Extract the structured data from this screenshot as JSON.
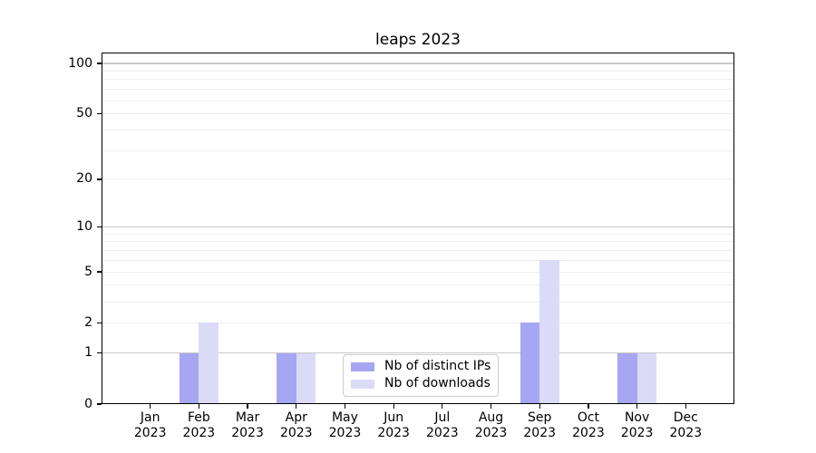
{
  "title": "leaps 2023",
  "chart_data": {
    "type": "bar",
    "title": "leaps 2023",
    "categories": [
      "Jan",
      "Feb",
      "Mar",
      "Apr",
      "May",
      "Jun",
      "Jul",
      "Aug",
      "Sep",
      "Oct",
      "Nov",
      "Dec"
    ],
    "year": "2023",
    "series": [
      {
        "name": "Nb of distinct IPs",
        "color": "#a6a6f2",
        "values": [
          0,
          1,
          0,
          1,
          0,
          0,
          0,
          0,
          2,
          0,
          1,
          0
        ]
      },
      {
        "name": "Nb of downloads",
        "color": "#dbdbf8",
        "values": [
          0,
          2,
          0,
          1,
          0,
          0,
          0,
          0,
          6,
          0,
          1,
          0
        ]
      }
    ],
    "xlabel": "",
    "ylabel": "",
    "yscale": "log1p",
    "ylim": [
      0,
      116
    ],
    "y_tick_values": [
      0,
      1,
      2,
      5,
      10,
      20,
      50,
      100
    ],
    "y_tick_labels": [
      "0",
      "1",
      "2",
      "5",
      "10",
      "20",
      "50",
      "100"
    ],
    "y_gridlines_major": [
      1,
      10,
      100
    ],
    "y_gridlines_minor": [
      2,
      3,
      4,
      5,
      6,
      7,
      8,
      9,
      20,
      30,
      40,
      50,
      60,
      70,
      80,
      90
    ],
    "grid": true,
    "legend_position": "lower center"
  },
  "legend": {
    "items": [
      "Nb of distinct IPs",
      "Nb of downloads"
    ]
  },
  "colors": {
    "bar_distinct_ips": "#a6a6f2",
    "bar_downloads": "#dbdbf8",
    "grid_major": "#c9c9c9",
    "grid_minor": "#efefef",
    "spine": "#000000",
    "legend_border": "#cccccc",
    "text": "#000000",
    "background": "#ffffff"
  }
}
